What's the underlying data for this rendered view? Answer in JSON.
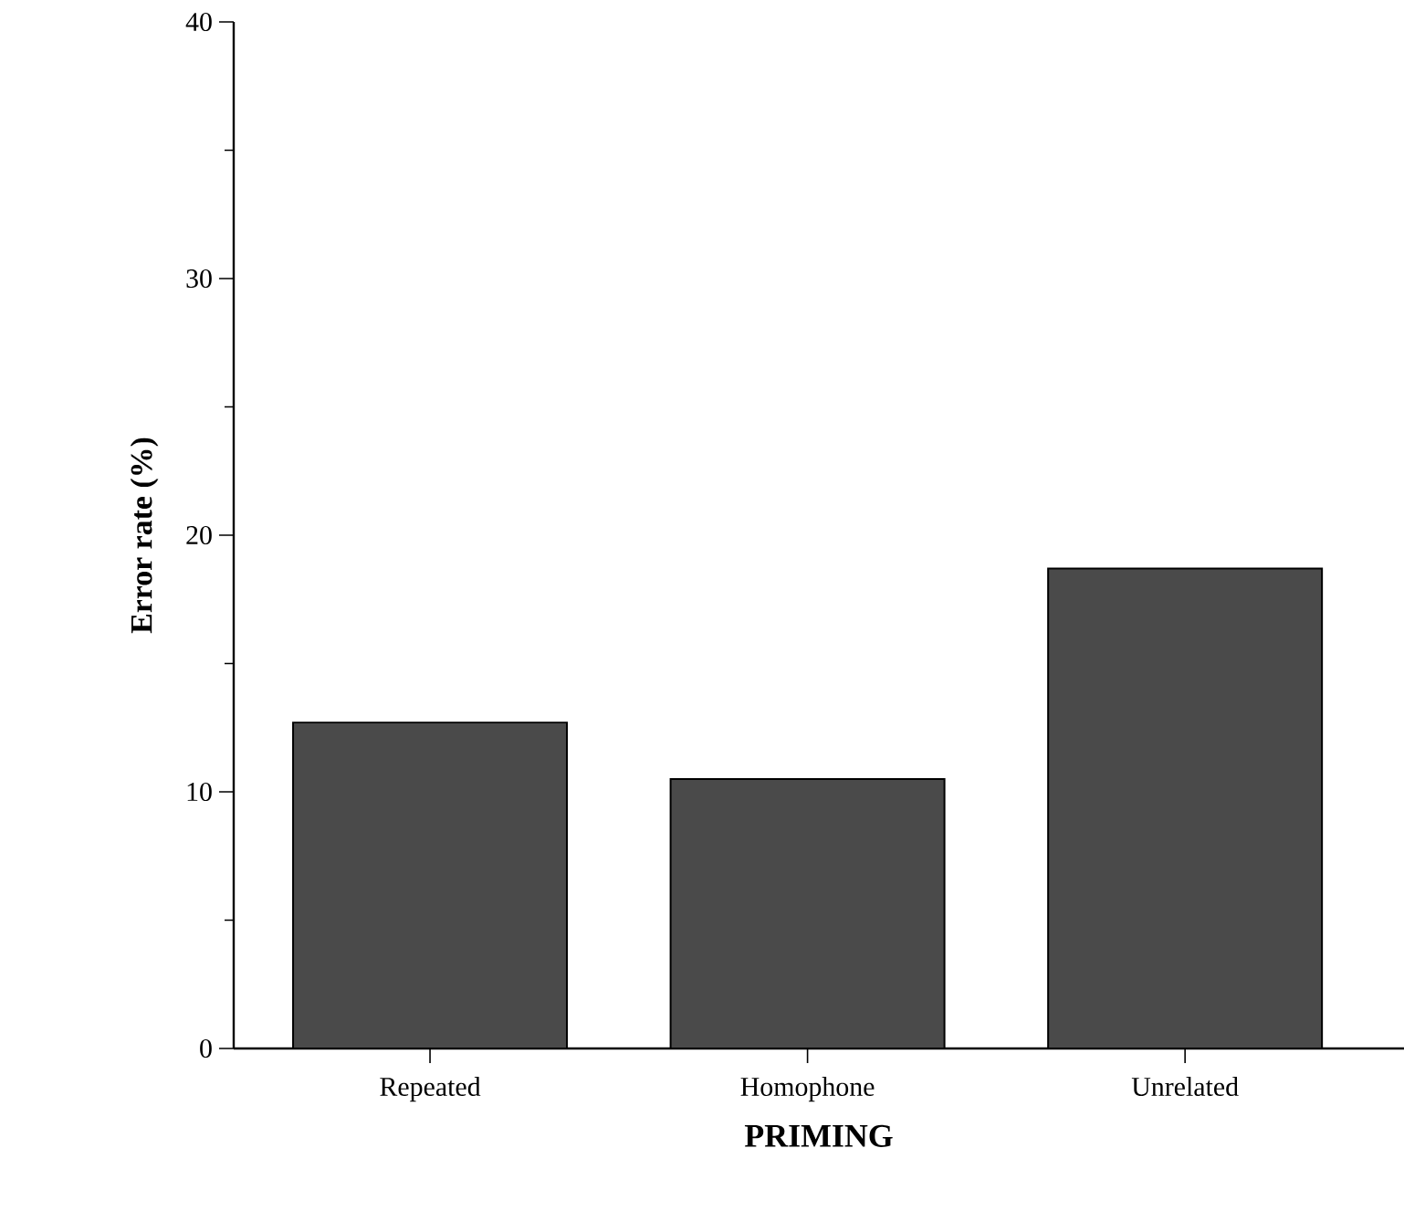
{
  "chart_data": {
    "type": "bar",
    "categories": [
      "Repeated",
      "Homophone",
      "Unrelated"
    ],
    "values": [
      12.7,
      10.5,
      18.7
    ],
    "color": "#4a4a4a",
    "xlabel": "PRIMING",
    "ylabel": "Error rate (%)",
    "ylim": [
      0,
      40
    ],
    "yticks": [
      0,
      10,
      20,
      30,
      40
    ],
    "grid": false
  }
}
